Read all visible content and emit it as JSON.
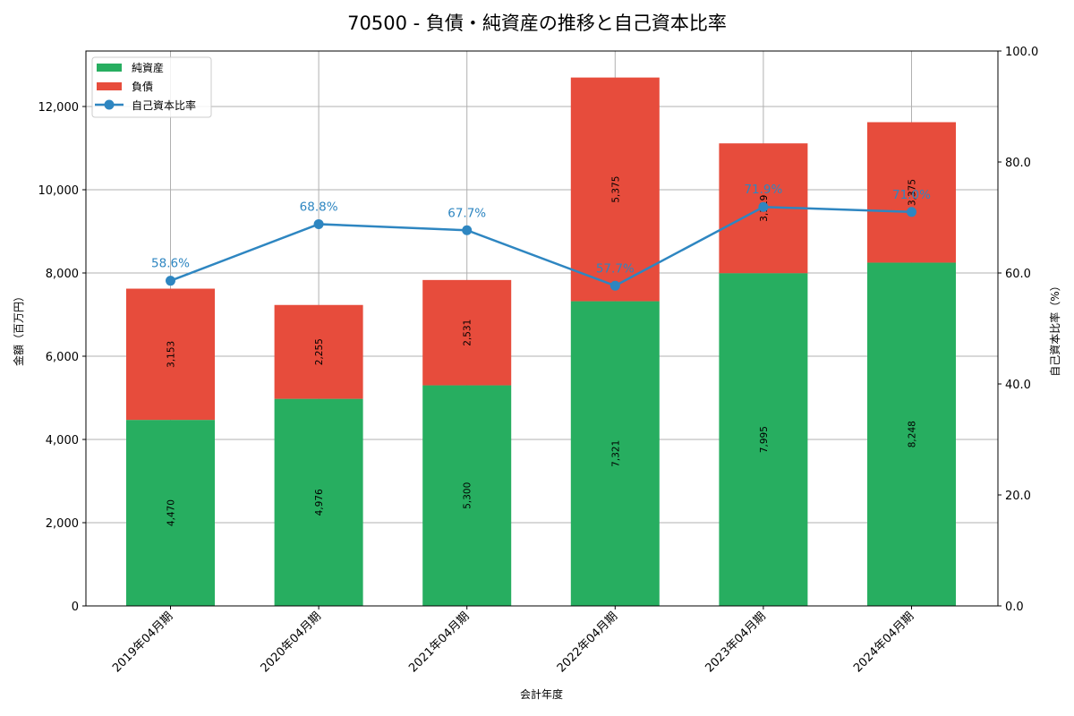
{
  "chart_data": {
    "type": "bar",
    "stacked": true,
    "title": "70500 - 負債・純資産の推移と自己資本比率",
    "xlabel": "会計年度",
    "ylabel": "金額（百万円）",
    "y2label": "自己資本比率（%）",
    "categories": [
      "2019年04月期",
      "2020年04月期",
      "2021年04月期",
      "2022年04月期",
      "2023年04月期",
      "2024年04月期"
    ],
    "series": [
      {
        "name": "純資産",
        "type": "bar",
        "color": "#27ae60",
        "values": [
          4470,
          4976,
          5300,
          7321,
          7995,
          8248
        ],
        "labels": [
          "4,470",
          "4,976",
          "5,300",
          "7,321",
          "7,995",
          "8,248"
        ]
      },
      {
        "name": "負債",
        "type": "bar",
        "color": "#e74c3c",
        "values": [
          3153,
          2255,
          2531,
          5375,
          3119,
          3375
        ],
        "labels": [
          "3,153",
          "2,255",
          "2,531",
          "5,375",
          "3,119",
          "3,375"
        ]
      },
      {
        "name": "自己資本比率",
        "type": "line",
        "axis": "right",
        "color": "#2e86c1",
        "values": [
          58.6,
          68.8,
          67.7,
          57.7,
          71.9,
          71.0
        ],
        "labels": [
          "58.6%",
          "68.8%",
          "67.7%",
          "57.7%",
          "71.9%",
          "71.0%"
        ]
      }
    ],
    "ylim": [
      0,
      13333
    ],
    "yticks": [
      0,
      2000,
      4000,
      6000,
      8000,
      10000,
      12000
    ],
    "ytick_labels": [
      "0",
      "2,000",
      "4,000",
      "6,000",
      "8,000",
      "10,000",
      "12,000"
    ],
    "y2lim": [
      0,
      100
    ],
    "y2ticks": [
      0,
      20,
      40,
      60,
      80,
      100
    ],
    "y2tick_labels": [
      "0.0",
      "20.0",
      "40.0",
      "60.0",
      "80.0",
      "100.0"
    ],
    "grid": true,
    "legend_position": "upper left"
  }
}
